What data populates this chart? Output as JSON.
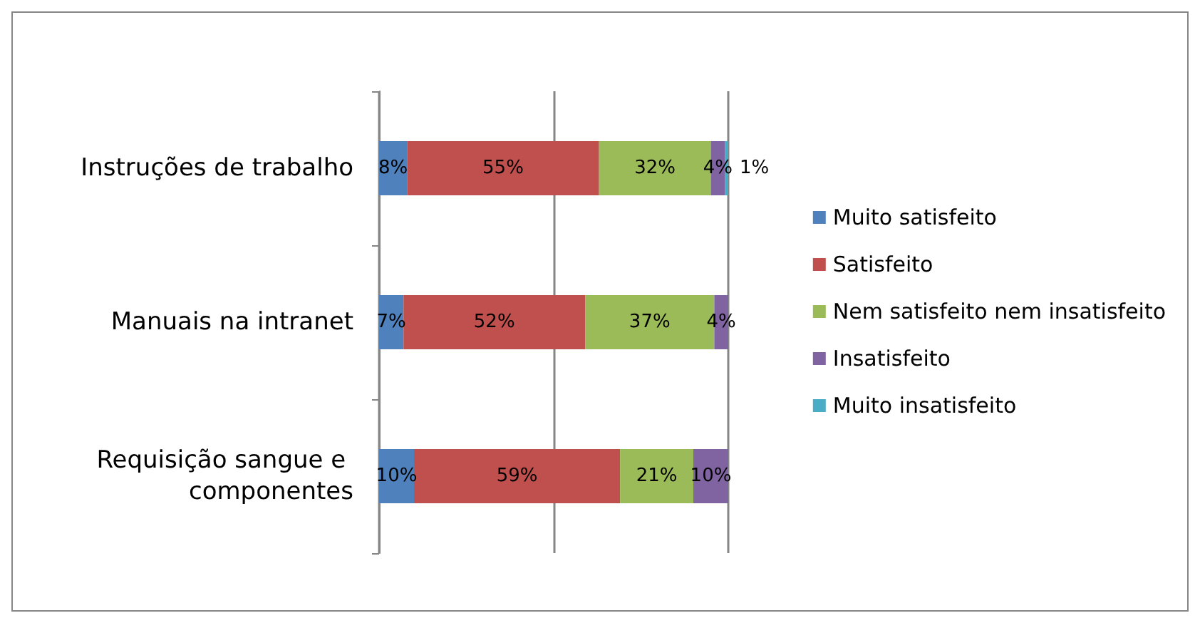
{
  "chart_data": {
    "type": "bar",
    "orientation": "horizontal",
    "stacked": true,
    "categories": [
      "Instruções de trabalho",
      "Manuais na intranet",
      "Requisição sangue e componentes"
    ],
    "series": [
      {
        "name": "Muito satisfeito",
        "color": "#4f81bd",
        "values": [
          8,
          7,
          10
        ],
        "value_labels": [
          "8%",
          "7%",
          "10%"
        ]
      },
      {
        "name": "Satisfeito",
        "color": "#c0504d",
        "values": [
          55,
          52,
          59
        ],
        "value_labels": [
          "55%",
          "52%",
          "59%"
        ]
      },
      {
        "name": "Nem satisfeito nem insatisfeito",
        "color": "#9bbb59",
        "values": [
          32,
          37,
          21
        ],
        "value_labels": [
          "32%",
          "37%",
          "21%"
        ]
      },
      {
        "name": "Insatisfeito",
        "color": "#8064a2",
        "values": [
          4,
          4,
          10
        ],
        "value_labels": [
          "4%",
          "4%",
          "10%"
        ]
      },
      {
        "name": "Muito insatisfeito",
        "color": "#4bacc6",
        "values": [
          1,
          0,
          0
        ],
        "value_labels": [
          "1%",
          null,
          null
        ]
      }
    ],
    "xlim": [
      0,
      100
    ],
    "xticks": [
      {
        "value": 0,
        "label": null
      },
      {
        "value": 50,
        "label": null
      },
      {
        "value": 100,
        "label": null
      }
    ],
    "grid": "x",
    "legend": "right",
    "tick_labels": "y"
  }
}
